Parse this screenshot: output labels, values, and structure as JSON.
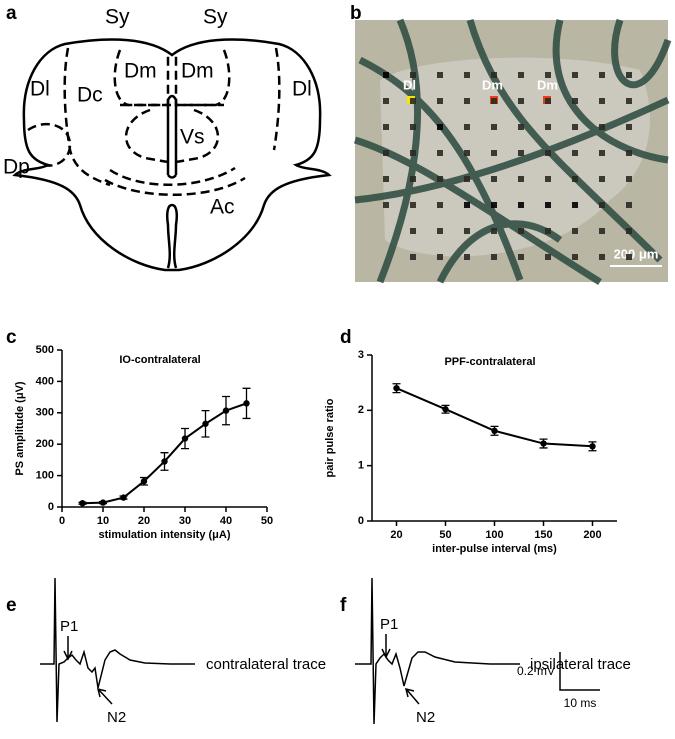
{
  "panel_labels": [
    "a",
    "b",
    "c",
    "d",
    "e",
    "f"
  ],
  "diagram": {
    "labels": [
      "Sy",
      "Sy",
      "Dm",
      "Dm",
      "Dl",
      "Dc",
      "Dl",
      "Vs",
      "Dp",
      "Ac"
    ]
  },
  "photo": {
    "labels": [
      "Dl",
      "Dm",
      "Dm"
    ],
    "scale_bar": "200 μm"
  },
  "chart_data": [
    {
      "type": "line",
      "title": "IO-contralateral",
      "x_label": "stimulation intensity (μA)",
      "y_label": "PS amplitude (μV)",
      "x": [
        5,
        10,
        15,
        20,
        25,
        30,
        35,
        40,
        45
      ],
      "values": [
        12,
        14,
        30,
        82,
        145,
        218,
        265,
        307,
        330
      ],
      "errors": [
        3,
        3,
        5,
        12,
        28,
        32,
        42,
        45,
        48
      ],
      "color": "#000000",
      "xlim": [
        0,
        50
      ],
      "xticks": [
        0,
        10,
        20,
        30,
        40,
        50
      ],
      "ylim": [
        0,
        500
      ],
      "yticks": [
        0,
        100,
        200,
        300,
        400,
        500
      ]
    },
    {
      "type": "line",
      "title": "PPF-contralateral",
      "x_label": "inter-pulse interval (ms)",
      "y_label": "pair pulse ratio",
      "categories": [
        "20",
        "50",
        "100",
        "150",
        "200"
      ],
      "values": [
        2.4,
        2.02,
        1.63,
        1.4,
        1.35
      ],
      "errors": [
        0.08,
        0.07,
        0.08,
        0.08,
        0.08
      ],
      "color": "#000000",
      "ylim": [
        0,
        3
      ],
      "yticks": [
        0,
        1,
        2,
        3
      ]
    }
  ],
  "traces": {
    "labels": [
      "P1",
      "N2",
      "contralateral trace",
      "P1",
      "N2",
      "ipsilateral trace"
    ],
    "scale": [
      "0.2 mV",
      "10 ms"
    ]
  }
}
